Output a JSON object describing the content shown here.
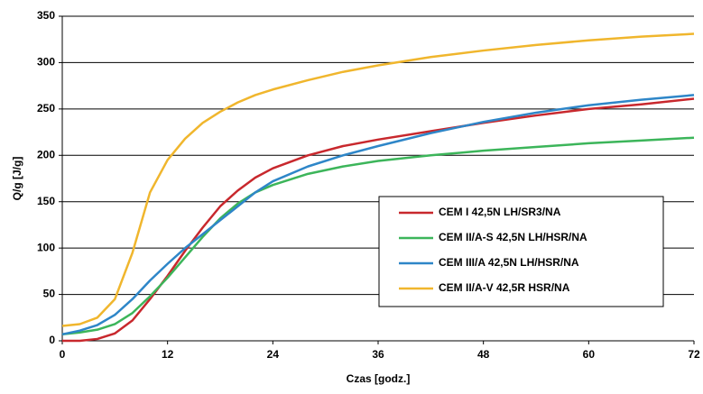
{
  "chart_data": {
    "type": "line",
    "x_label": "Czas [godz.]",
    "y_label": "Q/g [J/g]",
    "x": [
      0,
      2,
      4,
      6,
      8,
      10,
      12,
      14,
      16,
      18,
      20,
      22,
      24,
      28,
      32,
      36,
      42,
      48,
      54,
      60,
      66,
      72
    ],
    "series": [
      {
        "name": "CEM I 42,5N LH/SR3/NA",
        "color": "#c8282d",
        "values": [
          0,
          0,
          2,
          8,
          22,
          45,
          70,
          97,
          122,
          145,
          162,
          176,
          186,
          200,
          210,
          217,
          226,
          235,
          243,
          250,
          255,
          261
        ]
      },
      {
        "name": "CEM II/A-S  42,5N LH/HSR/NA",
        "color": "#3cb55a",
        "values": [
          7,
          9,
          12,
          18,
          30,
          48,
          68,
          90,
          112,
          132,
          148,
          160,
          168,
          180,
          188,
          194,
          200,
          205,
          209,
          213,
          216,
          219
        ]
      },
      {
        "name": "CEM III/A  42,5N LH/HSR/NA",
        "color": "#2e86c8",
        "values": [
          7,
          11,
          17,
          28,
          45,
          65,
          83,
          100,
          115,
          130,
          145,
          160,
          172,
          188,
          200,
          210,
          224,
          236,
          246,
          254,
          260,
          265
        ]
      },
      {
        "name": "CEM II/A-V  42,5R HSR/NA",
        "color": "#f0b62d",
        "values": [
          16,
          18,
          25,
          45,
          95,
          160,
          195,
          218,
          235,
          247,
          257,
          265,
          271,
          281,
          290,
          297,
          306,
          313,
          319,
          324,
          328,
          331
        ]
      }
    ],
    "xlim": [
      0,
      72
    ],
    "xticks": [
      0,
      12,
      24,
      36,
      48,
      60,
      72
    ],
    "ylim": [
      0,
      350
    ],
    "yticks": [
      0,
      50,
      100,
      150,
      200,
      250,
      300,
      350
    ],
    "grid": true,
    "legend": "lower right"
  }
}
